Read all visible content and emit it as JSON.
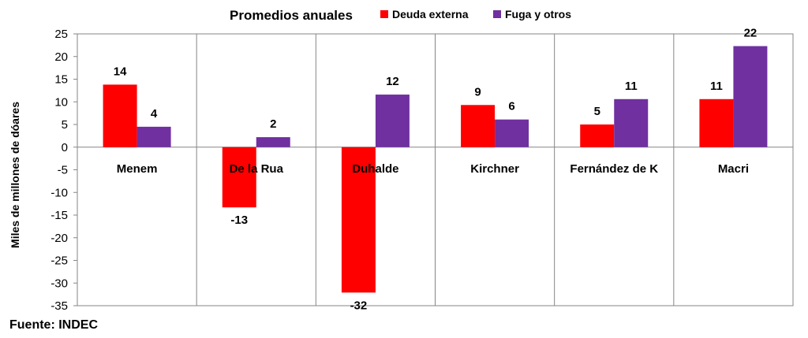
{
  "chart_data": {
    "type": "bar",
    "title": "Promedios anuales",
    "ylabel": "Miles de millones de dóares",
    "xlabel": "",
    "categories": [
      "Menem",
      "De la Rua",
      "Duhalde",
      "Kirchner",
      "Fernández de K",
      "Macri"
    ],
    "series": [
      {
        "name": "Deuda externa",
        "color": "#ff0000",
        "values": [
          13.8,
          -13.3,
          -32.1,
          9.3,
          5.0,
          10.6
        ],
        "labels": [
          "14",
          "-13",
          "-32",
          "9",
          "5",
          "11"
        ]
      },
      {
        "name": "Fuga y otros",
        "color": "#7030a0",
        "values": [
          4.5,
          2.2,
          11.6,
          6.1,
          10.6,
          22.3
        ],
        "labels": [
          "4",
          "2",
          "12",
          "6",
          "11",
          "22"
        ]
      }
    ],
    "ylim": [
      -35,
      25
    ],
    "yticks": [
      25,
      20,
      15,
      10,
      5,
      0,
      -5,
      -10,
      -15,
      -20,
      -25,
      -30,
      -35
    ],
    "grid": "vertical category separators",
    "legend": "top-right of title"
  },
  "source": "Fuente: INDEC"
}
